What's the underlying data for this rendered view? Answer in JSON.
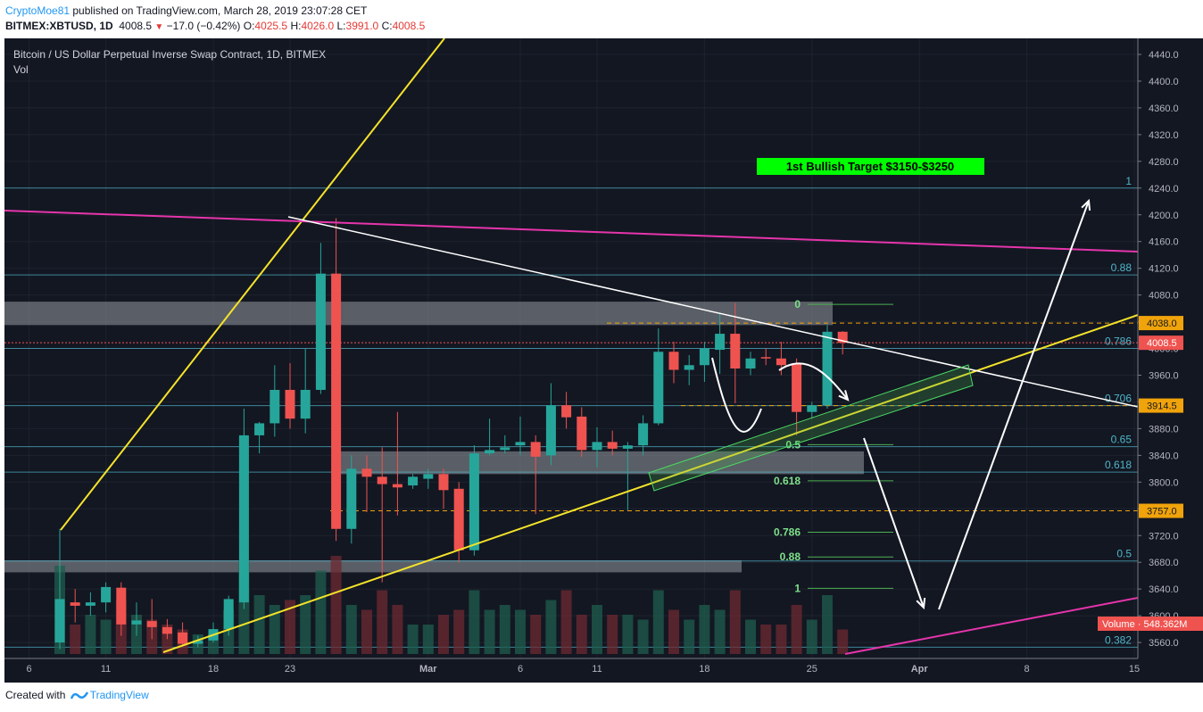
{
  "header": {
    "user": "CryptoMoe81",
    "published": " published on TradingView.com, March 28, 2019 23:07:28 CET",
    "symbol": "BITMEX:XBTUSD, 1D",
    "last": "4008.5",
    "change": "−17.0 (−0.42%)",
    "o_label": "O:",
    "o_val": "4025.5",
    "h_label": "H:",
    "h_val": "4026.0",
    "l_label": "L:",
    "l_val": "3991.0",
    "c_label": "C:",
    "c_val": "4008.5"
  },
  "legend": {
    "title": "Bitcoin / US Dollar Perpetual Inverse Swap Contract, 1D, BITMEX",
    "vol": "Vol"
  },
  "footer": {
    "created": "Created with",
    "brand": "TradingView"
  },
  "colors": {
    "bg": "#131722",
    "up": "#26a69a",
    "down": "#ef5350",
    "grid": "#2a2e39",
    "fib_blue": "#4fb6ca",
    "fib_green": "#4caf50",
    "yellow": "#f5e32a",
    "magenta": "#e535ab",
    "white": "#ffffff",
    "price_tag": "#ef5350",
    "orange_tag": "#f0a30a"
  },
  "annotation": {
    "target": "1st Bullish Target $3150-$3250"
  },
  "price_tags": {
    "current": "4008.5",
    "level1": "4038.0",
    "level2": "3914.5",
    "level3": "3757.0",
    "volume": "Volume · 548.362M"
  },
  "fib_right": [
    {
      "label": "1",
      "price": 4240
    },
    {
      "label": "0.88",
      "price": 4110
    },
    {
      "label": "0.786",
      "price": 4000
    },
    {
      "label": "0.706",
      "price": 3914.5
    },
    {
      "label": "0.65",
      "price": 3853
    },
    {
      "label": "0.618",
      "price": 3815
    },
    {
      "label": "0.5",
      "price": 3682
    },
    {
      "label": "0.382",
      "price": 3553
    }
  ],
  "fib_mid": [
    {
      "label": "0",
      "price": 4066
    },
    {
      "label": "0.5",
      "price": 3856
    },
    {
      "label": "0.618",
      "price": 3802
    },
    {
      "label": "0.786",
      "price": 3725
    },
    {
      "label": "0.88",
      "price": 3688
    },
    {
      "label": "1",
      "price": 3641
    }
  ],
  "chart_data": {
    "type": "candlestick",
    "title": "Bitcoin / US Dollar Perpetual Inverse Swap Contract, 1D, BITMEX",
    "ylim": [
      3540,
      4460
    ],
    "y_ticks": [
      4440,
      4400,
      4360,
      4320,
      4280,
      4240,
      4200,
      4160,
      4120,
      4080,
      4040,
      4000,
      3960,
      3920,
      3880,
      3840,
      3800,
      3760,
      3720,
      3680,
      3640,
      3600,
      3560
    ],
    "x_ticks": [
      "6",
      "11",
      "18",
      "23",
      "Mar",
      "6",
      "11",
      "18",
      "25",
      "Apr",
      "8",
      "15"
    ],
    "x_tick_index": [
      -2,
      3,
      10,
      15,
      24,
      30,
      35,
      42,
      49,
      56,
      63,
      70
    ],
    "candles": [
      {
        "d": 0,
        "o": 3560,
        "h": 3730,
        "l": 3550,
        "c": 3625
      },
      {
        "d": 1,
        "o": 3620,
        "h": 3640,
        "l": 3590,
        "c": 3615
      },
      {
        "d": 2,
        "o": 3615,
        "h": 3635,
        "l": 3600,
        "c": 3620
      },
      {
        "d": 3,
        "o": 3620,
        "h": 3650,
        "l": 3605,
        "c": 3643
      },
      {
        "d": 4,
        "o": 3642,
        "h": 3650,
        "l": 3570,
        "c": 3587
      },
      {
        "d": 5,
        "o": 3587,
        "h": 3620,
        "l": 3570,
        "c": 3593
      },
      {
        "d": 6,
        "o": 3592,
        "h": 3625,
        "l": 3565,
        "c": 3583
      },
      {
        "d": 7,
        "o": 3583,
        "h": 3595,
        "l": 3565,
        "c": 3573
      },
      {
        "d": 8,
        "o": 3575,
        "h": 3590,
        "l": 3555,
        "c": 3558
      },
      {
        "d": 9,
        "o": 3558,
        "h": 3570,
        "l": 3553,
        "c": 3563
      },
      {
        "d": 10,
        "o": 3563,
        "h": 3590,
        "l": 3560,
        "c": 3580
      },
      {
        "d": 11,
        "o": 3580,
        "h": 3630,
        "l": 3570,
        "c": 3625
      },
      {
        "d": 12,
        "o": 3620,
        "h": 3910,
        "l": 3610,
        "c": 3870
      },
      {
        "d": 13,
        "o": 3870,
        "h": 3890,
        "l": 3843,
        "c": 3888
      },
      {
        "d": 14,
        "o": 3888,
        "h": 3975,
        "l": 3868,
        "c": 3938
      },
      {
        "d": 15,
        "o": 3938,
        "h": 3978,
        "l": 3880,
        "c": 3895
      },
      {
        "d": 16,
        "o": 3895,
        "h": 4000,
        "l": 3873,
        "c": 3938
      },
      {
        "d": 17,
        "o": 3938,
        "h": 4158,
        "l": 3932,
        "c": 4112
      },
      {
        "d": 18,
        "o": 4112,
        "h": 4195,
        "l": 3712,
        "c": 3730
      },
      {
        "d": 19,
        "o": 3730,
        "h": 3840,
        "l": 3708,
        "c": 3820
      },
      {
        "d": 20,
        "o": 3820,
        "h": 3840,
        "l": 3755,
        "c": 3808
      },
      {
        "d": 21,
        "o": 3808,
        "h": 3852,
        "l": 3650,
        "c": 3797
      },
      {
        "d": 22,
        "o": 3797,
        "h": 3905,
        "l": 3750,
        "c": 3792
      },
      {
        "d": 23,
        "o": 3795,
        "h": 3812,
        "l": 3790,
        "c": 3808
      },
      {
        "d": 24,
        "o": 3805,
        "h": 3820,
        "l": 3790,
        "c": 3812
      },
      {
        "d": 25,
        "o": 3812,
        "h": 3820,
        "l": 3760,
        "c": 3788
      },
      {
        "d": 26,
        "o": 3790,
        "h": 3800,
        "l": 3680,
        "c": 3698
      },
      {
        "d": 27,
        "o": 3698,
        "h": 3855,
        "l": 3690,
        "c": 3843
      },
      {
        "d": 28,
        "o": 3843,
        "h": 3895,
        "l": 3840,
        "c": 3848
      },
      {
        "d": 29,
        "o": 3848,
        "h": 3870,
        "l": 3843,
        "c": 3852
      },
      {
        "d": 30,
        "o": 3855,
        "h": 3898,
        "l": 3840,
        "c": 3860
      },
      {
        "d": 31,
        "o": 3860,
        "h": 3870,
        "l": 3752,
        "c": 3838
      },
      {
        "d": 32,
        "o": 3840,
        "h": 3948,
        "l": 3825,
        "c": 3915
      },
      {
        "d": 33,
        "o": 3915,
        "h": 3935,
        "l": 3880,
        "c": 3897
      },
      {
        "d": 34,
        "o": 3898,
        "h": 3912,
        "l": 3838,
        "c": 3848
      },
      {
        "d": 35,
        "o": 3848,
        "h": 3882,
        "l": 3822,
        "c": 3860
      },
      {
        "d": 36,
        "o": 3860,
        "h": 3877,
        "l": 3840,
        "c": 3850
      },
      {
        "d": 37,
        "o": 3850,
        "h": 3860,
        "l": 3758,
        "c": 3855
      },
      {
        "d": 38,
        "o": 3855,
        "h": 3900,
        "l": 3840,
        "c": 3888
      },
      {
        "d": 39,
        "o": 3888,
        "h": 4030,
        "l": 3885,
        "c": 3995
      },
      {
        "d": 40,
        "o": 3995,
        "h": 4010,
        "l": 3948,
        "c": 3968
      },
      {
        "d": 41,
        "o": 3968,
        "h": 3990,
        "l": 3945,
        "c": 3975
      },
      {
        "d": 42,
        "o": 3975,
        "h": 4010,
        "l": 3950,
        "c": 4000
      },
      {
        "d": 43,
        "o": 3998,
        "h": 4052,
        "l": 3962,
        "c": 4022
      },
      {
        "d": 44,
        "o": 4022,
        "h": 4068,
        "l": 3918,
        "c": 3970
      },
      {
        "d": 45,
        "o": 3970,
        "h": 3995,
        "l": 3960,
        "c": 3985
      },
      {
        "d": 46,
        "o": 3987,
        "h": 4000,
        "l": 3975,
        "c": 3985
      },
      {
        "d": 47,
        "o": 3985,
        "h": 4010,
        "l": 3960,
        "c": 3975
      },
      {
        "d": 48,
        "o": 3978,
        "h": 3985,
        "l": 3870,
        "c": 3905
      },
      {
        "d": 49,
        "o": 3905,
        "h": 3920,
        "l": 3895,
        "c": 3915
      },
      {
        "d": 50,
        "o": 3915,
        "h": 4035,
        "l": 3910,
        "c": 4025
      },
      {
        "d": 51,
        "o": 4025,
        "h": 4026,
        "l": 3991,
        "c": 4008.5
      }
    ],
    "volume": [
      {
        "d": 0,
        "v": 0.9
      },
      {
        "d": 1,
        "v": 0.3
      },
      {
        "d": 2,
        "v": 0.4
      },
      {
        "d": 3,
        "v": 0.35
      },
      {
        "d": 4,
        "v": 0.55
      },
      {
        "d": 5,
        "v": 0.4
      },
      {
        "d": 6,
        "v": 0.35
      },
      {
        "d": 7,
        "v": 0.3
      },
      {
        "d": 8,
        "v": 0.25
      },
      {
        "d": 9,
        "v": 0.2
      },
      {
        "d": 10,
        "v": 0.2
      },
      {
        "d": 11,
        "v": 0.45
      },
      {
        "d": 12,
        "v": 0.95
      },
      {
        "d": 13,
        "v": 0.6
      },
      {
        "d": 14,
        "v": 0.5
      },
      {
        "d": 15,
        "v": 0.55
      },
      {
        "d": 16,
        "v": 0.6
      },
      {
        "d": 17,
        "v": 0.85
      },
      {
        "d": 18,
        "v": 1.0
      },
      {
        "d": 19,
        "v": 0.5
      },
      {
        "d": 20,
        "v": 0.45
      },
      {
        "d": 21,
        "v": 0.65
      },
      {
        "d": 22,
        "v": 0.5
      },
      {
        "d": 23,
        "v": 0.3
      },
      {
        "d": 24,
        "v": 0.3
      },
      {
        "d": 25,
        "v": 0.4
      },
      {
        "d": 26,
        "v": 0.45
      },
      {
        "d": 27,
        "v": 0.65
      },
      {
        "d": 28,
        "v": 0.45
      },
      {
        "d": 29,
        "v": 0.5
      },
      {
        "d": 30,
        "v": 0.45
      },
      {
        "d": 31,
        "v": 0.4
      },
      {
        "d": 32,
        "v": 0.55
      },
      {
        "d": 33,
        "v": 0.65
      },
      {
        "d": 34,
        "v": 0.4
      },
      {
        "d": 35,
        "v": 0.5
      },
      {
        "d": 36,
        "v": 0.4
      },
      {
        "d": 37,
        "v": 0.4
      },
      {
        "d": 38,
        "v": 0.35
      },
      {
        "d": 39,
        "v": 0.65
      },
      {
        "d": 40,
        "v": 0.45
      },
      {
        "d": 41,
        "v": 0.35
      },
      {
        "d": 42,
        "v": 0.5
      },
      {
        "d": 43,
        "v": 0.45
      },
      {
        "d": 44,
        "v": 0.65
      },
      {
        "d": 45,
        "v": 0.35
      },
      {
        "d": 46,
        "v": 0.3
      },
      {
        "d": 47,
        "v": 0.3
      },
      {
        "d": 48,
        "v": 0.5
      },
      {
        "d": 49,
        "v": 0.35
      },
      {
        "d": 50,
        "v": 0.6
      },
      {
        "d": 51,
        "v": 0.25
      }
    ]
  }
}
